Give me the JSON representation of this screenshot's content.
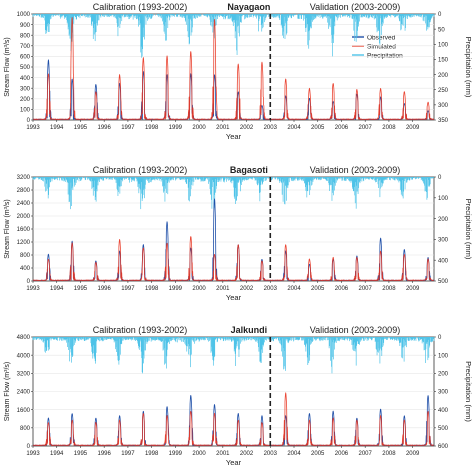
{
  "figure": {
    "shared_labels": {
      "calibration": "Calibration (1993-2002)",
      "validation": "Validation (2003-2009)",
      "xlabel": "Year",
      "ylabel_left": "Stream Flow (m³/s)",
      "ylabel_right": "Precipitation (mm)"
    },
    "colors": {
      "observed": "#1f4fa8",
      "simulated": "#e8321e",
      "precipitation": "#4ec3e8",
      "divider": "#222222"
    }
  },
  "chart_data": [
    {
      "type": "line",
      "title": "Nayagaon",
      "xlabel": "Year",
      "ylabel": "Stream Flow (m³/s)",
      "y2label": "Precipitation (mm)",
      "x_ticks": [
        "1993",
        "1994",
        "1995",
        "1996",
        "1997",
        "1998",
        "1999",
        "2000",
        "2001",
        "2002",
        "2003",
        "2004",
        "2005",
        "2006",
        "2007",
        "2008",
        "2009"
      ],
      "xlim": [
        1993,
        2009.9
      ],
      "ylim": [
        0,
        1000
      ],
      "y_ticks": [
        "0",
        "100",
        "200",
        "300",
        "400",
        "500",
        "600",
        "700",
        "800",
        "900",
        "1000"
      ],
      "y2lim": [
        350,
        0
      ],
      "y2_ticks": [
        "0",
        "50",
        "100",
        "150",
        "200",
        "250",
        "300",
        "350"
      ],
      "divider_year": 2003,
      "legend": {
        "position": "top-right",
        "entries": [
          "Observed",
          "Simulated",
          "Precipitation"
        ]
      },
      "series": [
        {
          "name": "Observed",
          "annual_peaks": [
            {
              "x": 1993.65,
              "y": 560
            },
            {
              "x": 1994.65,
              "y": 380
            },
            {
              "x": 1995.65,
              "y": 330
            },
            {
              "x": 1996.65,
              "y": 340
            },
            {
              "x": 1997.65,
              "y": 450
            },
            {
              "x": 1998.65,
              "y": 420
            },
            {
              "x": 1999.65,
              "y": 430
            },
            {
              "x": 2000.65,
              "y": 420
            },
            {
              "x": 2001.65,
              "y": 260
            },
            {
              "x": 2002.65,
              "y": 130
            },
            {
              "x": 2003.65,
              "y": 220
            },
            {
              "x": 2004.65,
              "y": 200
            },
            {
              "x": 2005.65,
              "y": 170
            },
            {
              "x": 2006.65,
              "y": 240
            },
            {
              "x": 2007.65,
              "y": 210
            },
            {
              "x": 2008.65,
              "y": 150
            },
            {
              "x": 2009.65,
              "y": 80
            }
          ]
        },
        {
          "name": "Simulated",
          "annual_peaks": [
            {
              "x": 1993.65,
              "y": 430
            },
            {
              "x": 1994.65,
              "y": 960
            },
            {
              "x": 1995.65,
              "y": 260
            },
            {
              "x": 1996.65,
              "y": 420
            },
            {
              "x": 1997.65,
              "y": 580
            },
            {
              "x": 1998.65,
              "y": 600
            },
            {
              "x": 1999.65,
              "y": 640
            },
            {
              "x": 2000.65,
              "y": 940
            },
            {
              "x": 2001.65,
              "y": 520
            },
            {
              "x": 2002.65,
              "y": 540
            },
            {
              "x": 2003.65,
              "y": 380
            },
            {
              "x": 2004.65,
              "y": 290
            },
            {
              "x": 2005.65,
              "y": 340
            },
            {
              "x": 2006.65,
              "y": 280
            },
            {
              "x": 2007.65,
              "y": 290
            },
            {
              "x": 2008.65,
              "y": 260
            },
            {
              "x": 2009.65,
              "y": 160
            }
          ]
        },
        {
          "name": "Precipitation",
          "annual_peaks": [
            {
              "x": 1993.6,
              "y": 90
            },
            {
              "x": 1994.6,
              "y": 130
            },
            {
              "x": 1995.6,
              "y": 110
            },
            {
              "x": 1996.6,
              "y": 85
            },
            {
              "x": 1997.6,
              "y": 160
            },
            {
              "x": 1998.6,
              "y": 95
            },
            {
              "x": 1999.6,
              "y": 120
            },
            {
              "x": 2000.6,
              "y": 90
            },
            {
              "x": 2001.6,
              "y": 150
            },
            {
              "x": 2002.6,
              "y": 105
            },
            {
              "x": 2003.6,
              "y": 115
            },
            {
              "x": 2004.6,
              "y": 140
            },
            {
              "x": 2005.6,
              "y": 150
            },
            {
              "x": 2006.6,
              "y": 100
            },
            {
              "x": 2007.6,
              "y": 120
            },
            {
              "x": 2008.6,
              "y": 100
            },
            {
              "x": 2009.6,
              "y": 95
            }
          ]
        }
      ]
    },
    {
      "type": "line",
      "title": "Bagasoti",
      "xlabel": "Year",
      "ylabel": "Stream Flow (m³/s)",
      "y2label": "Precipitation (mm)",
      "x_ticks": [
        "1993",
        "1994",
        "1995",
        "1996",
        "1997",
        "1998",
        "1999",
        "2000",
        "2001",
        "2002",
        "2003",
        "2004",
        "2005",
        "2006",
        "2007",
        "2008",
        "2009"
      ],
      "xlim": [
        1993,
        2009.9
      ],
      "ylim": [
        0,
        3200
      ],
      "y_ticks": [
        "0",
        "400",
        "800",
        "1200",
        "1600",
        "2000",
        "2400",
        "2800",
        "3200"
      ],
      "y2lim": [
        500,
        0
      ],
      "y2_ticks": [
        "0",
        "100",
        "200",
        "300",
        "400",
        "500"
      ],
      "divider_year": 2003,
      "series": [
        {
          "name": "Observed",
          "annual_peaks": [
            {
              "x": 1993.65,
              "y": 800
            },
            {
              "x": 1994.65,
              "y": 1200
            },
            {
              "x": 1995.65,
              "y": 600
            },
            {
              "x": 1996.65,
              "y": 900
            },
            {
              "x": 1997.65,
              "y": 1100
            },
            {
              "x": 1998.65,
              "y": 1800
            },
            {
              "x": 1999.65,
              "y": 1000
            },
            {
              "x": 2000.65,
              "y": 2500
            },
            {
              "x": 2001.65,
              "y": 1100
            },
            {
              "x": 2002.65,
              "y": 650
            },
            {
              "x": 2003.65,
              "y": 900
            },
            {
              "x": 2004.65,
              "y": 500
            },
            {
              "x": 2005.65,
              "y": 650
            },
            {
              "x": 2006.65,
              "y": 750
            },
            {
              "x": 2007.65,
              "y": 1300
            },
            {
              "x": 2008.65,
              "y": 950
            },
            {
              "x": 2009.65,
              "y": 700
            }
          ]
        },
        {
          "name": "Simulated",
          "annual_peaks": [
            {
              "x": 1993.65,
              "y": 650
            },
            {
              "x": 1994.65,
              "y": 1150
            },
            {
              "x": 1995.65,
              "y": 550
            },
            {
              "x": 1996.65,
              "y": 1250
            },
            {
              "x": 1997.65,
              "y": 1000
            },
            {
              "x": 1998.65,
              "y": 1150
            },
            {
              "x": 1999.65,
              "y": 1350
            },
            {
              "x": 2000.65,
              "y": 800
            },
            {
              "x": 2001.65,
              "y": 1100
            },
            {
              "x": 2002.65,
              "y": 600
            },
            {
              "x": 2003.65,
              "y": 1100
            },
            {
              "x": 2004.65,
              "y": 650
            },
            {
              "x": 2005.65,
              "y": 700
            },
            {
              "x": 2006.65,
              "y": 700
            },
            {
              "x": 2007.65,
              "y": 900
            },
            {
              "x": 2008.65,
              "y": 800
            },
            {
              "x": 2009.65,
              "y": 650
            }
          ]
        },
        {
          "name": "Precipitation",
          "annual_peaks": [
            {
              "x": 1993.6,
              "y": 120
            },
            {
              "x": 1994.6,
              "y": 190
            },
            {
              "x": 1995.6,
              "y": 150
            },
            {
              "x": 1996.6,
              "y": 110
            },
            {
              "x": 1997.6,
              "y": 230
            },
            {
              "x": 1998.6,
              "y": 140
            },
            {
              "x": 1999.6,
              "y": 130
            },
            {
              "x": 2000.6,
              "y": 200
            },
            {
              "x": 2001.6,
              "y": 220
            },
            {
              "x": 2002.6,
              "y": 130
            },
            {
              "x": 2003.6,
              "y": 170
            },
            {
              "x": 2004.6,
              "y": 150
            },
            {
              "x": 2005.6,
              "y": 140
            },
            {
              "x": 2006.6,
              "y": 170
            },
            {
              "x": 2007.6,
              "y": 120
            },
            {
              "x": 2008.6,
              "y": 140
            },
            {
              "x": 2009.6,
              "y": 110
            }
          ]
        }
      ]
    },
    {
      "type": "line",
      "title": "Jalkundi",
      "xlabel": "Year",
      "ylabel": "Stream Flow (m³/s)",
      "y2label": "Precipitation (mm)",
      "x_ticks": [
        "1993",
        "1994",
        "1995",
        "1996",
        "1997",
        "1998",
        "1999",
        "2000",
        "2001",
        "2002",
        "2003",
        "2004",
        "2005",
        "2006",
        "2007",
        "2008",
        "2009"
      ],
      "xlim": [
        1993,
        2009.9
      ],
      "ylim": [
        0,
        4800
      ],
      "y_ticks": [
        "0",
        "800",
        "1600",
        "2400",
        "3200",
        "4000",
        "4800"
      ],
      "y2lim": [
        600,
        0
      ],
      "y2_ticks": [
        "0",
        "100",
        "200",
        "300",
        "400",
        "500",
        "600"
      ],
      "divider_year": 2003,
      "series": [
        {
          "name": "Observed",
          "annual_peaks": [
            {
              "x": 1993.65,
              "y": 1200
            },
            {
              "x": 1994.65,
              "y": 1400
            },
            {
              "x": 1995.65,
              "y": 1200
            },
            {
              "x": 1996.65,
              "y": 1300
            },
            {
              "x": 1997.65,
              "y": 1500
            },
            {
              "x": 1998.65,
              "y": 1700
            },
            {
              "x": 1999.65,
              "y": 2200
            },
            {
              "x": 2000.65,
              "y": 1800
            },
            {
              "x": 2001.65,
              "y": 1400
            },
            {
              "x": 2002.65,
              "y": 1300
            },
            {
              "x": 2003.65,
              "y": 1300
            },
            {
              "x": 2004.65,
              "y": 1400
            },
            {
              "x": 2005.65,
              "y": 1500
            },
            {
              "x": 2006.65,
              "y": 1200
            },
            {
              "x": 2007.65,
              "y": 1600
            },
            {
              "x": 2008.65,
              "y": 1300
            },
            {
              "x": 2009.65,
              "y": 2200
            }
          ]
        },
        {
          "name": "Simulated",
          "annual_peaks": [
            {
              "x": 1993.65,
              "y": 1000
            },
            {
              "x": 1994.65,
              "y": 1100
            },
            {
              "x": 1995.65,
              "y": 1000
            },
            {
              "x": 1996.65,
              "y": 1100
            },
            {
              "x": 1997.65,
              "y": 1400
            },
            {
              "x": 1998.65,
              "y": 1300
            },
            {
              "x": 1999.65,
              "y": 1500
            },
            {
              "x": 2000.65,
              "y": 1400
            },
            {
              "x": 2001.65,
              "y": 1100
            },
            {
              "x": 2002.65,
              "y": 1000
            },
            {
              "x": 2003.65,
              "y": 2300
            },
            {
              "x": 2004.65,
              "y": 1100
            },
            {
              "x": 2005.65,
              "y": 1200
            },
            {
              "x": 2006.65,
              "y": 1100
            },
            {
              "x": 2007.65,
              "y": 1300
            },
            {
              "x": 2008.65,
              "y": 1100
            },
            {
              "x": 2009.65,
              "y": 1500
            }
          ]
        },
        {
          "name": "Precipitation",
          "annual_peaks": [
            {
              "x": 1993.6,
              "y": 150
            },
            {
              "x": 1994.6,
              "y": 180
            },
            {
              "x": 1995.6,
              "y": 200
            },
            {
              "x": 1996.6,
              "y": 160
            },
            {
              "x": 1997.6,
              "y": 220
            },
            {
              "x": 1998.6,
              "y": 190
            },
            {
              "x": 1999.6,
              "y": 250
            },
            {
              "x": 2000.6,
              "y": 170
            },
            {
              "x": 2001.6,
              "y": 200
            },
            {
              "x": 2002.6,
              "y": 160
            },
            {
              "x": 2003.6,
              "y": 210
            },
            {
              "x": 2004.6,
              "y": 170
            },
            {
              "x": 2005.6,
              "y": 200
            },
            {
              "x": 2006.6,
              "y": 180
            },
            {
              "x": 2007.6,
              "y": 190
            },
            {
              "x": 2008.6,
              "y": 170
            },
            {
              "x": 2009.6,
              "y": 210
            }
          ]
        }
      ]
    }
  ]
}
